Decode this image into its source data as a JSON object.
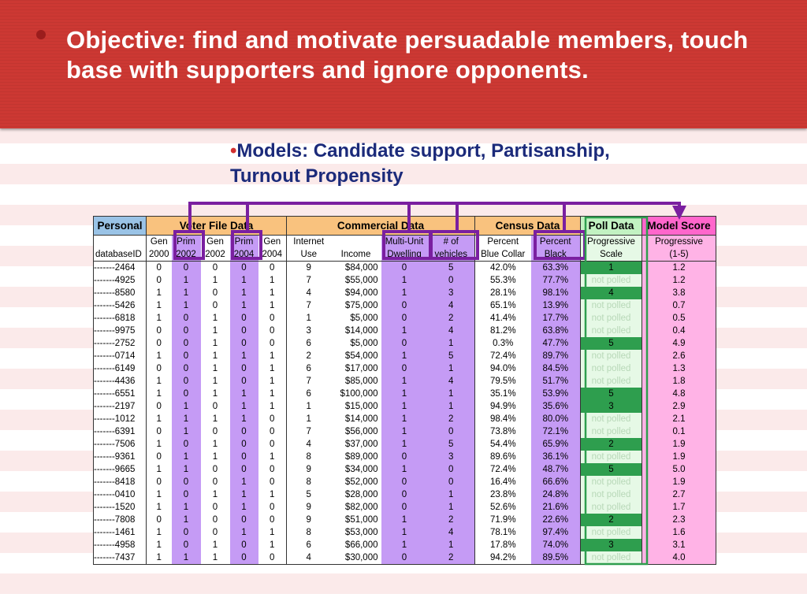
{
  "slide": {
    "objective": "Objective:  find and motivate persuadable members, touch base with supporters and ignore opponents.",
    "models_bullet": "•",
    "models": "Models: Candidate support, Partisanship, Turnout Propensity"
  },
  "colors": {
    "header_red": "#cc3833",
    "subtitle_blue": "#1b2a7a",
    "personal": "#9ac3e6",
    "group_orange": "#f9c27e",
    "highlight_purple": "#c59bf5",
    "box_purple": "#7a1fa0",
    "poll_green": "#c2f2c2",
    "poll_dark_green": "#2e9e4e",
    "model_pink": "#ff66cc"
  },
  "table": {
    "groups": {
      "personal": "Personal",
      "voter": "Voter File Data",
      "commercial": "Commercial Data",
      "census": "Census Data",
      "poll": "Poll Data",
      "model": "Model Score"
    },
    "header_top": {
      "gen2000": "Gen",
      "prim2002": "Prim",
      "gen2002": "Gen",
      "prim2004": "Prim",
      "gen2004": "Gen",
      "internet": "Internet",
      "multiunit": "Multi-Unit",
      "vehicles": "# of",
      "bluecollar": "Percent",
      "black": "Percent",
      "poll": "Progressive",
      "model": "Progressive"
    },
    "header_bottom": {
      "id": "databaseID",
      "gen2000": "2000",
      "prim2002": "2002",
      "gen2002": "2002",
      "prim2004": "2004",
      "gen2004": "2004",
      "internet": "Use",
      "income": "Income",
      "multiunit": "Dwelling",
      "vehicles": "vehicles",
      "bluecollar": "Blue Collar",
      "black": "Black",
      "poll": "Scale",
      "model": "(1-5)"
    },
    "rows": [
      [
        "-------2464",
        "0",
        "0",
        "0",
        "0",
        "0",
        "9",
        "$84,000",
        "0",
        "5",
        "42.0%",
        "63.3%",
        "1",
        "1.2"
      ],
      [
        "-------4925",
        "0",
        "1",
        "1",
        "1",
        "1",
        "7",
        "$55,000",
        "1",
        "0",
        "55.3%",
        "77.7%",
        "not polled",
        "1.2"
      ],
      [
        "-------8580",
        "1",
        "1",
        "0",
        "1",
        "1",
        "4",
        "$94,000",
        "1",
        "3",
        "28.1%",
        "98.1%",
        "4",
        "3.8"
      ],
      [
        "-------5426",
        "1",
        "1",
        "0",
        "1",
        "1",
        "7",
        "$75,000",
        "0",
        "4",
        "65.1%",
        "13.9%",
        "not polled",
        "0.7"
      ],
      [
        "-------6818",
        "1",
        "0",
        "1",
        "0",
        "0",
        "1",
        "$5,000",
        "0",
        "2",
        "41.4%",
        "17.7%",
        "not polled",
        "0.5"
      ],
      [
        "-------9975",
        "0",
        "0",
        "1",
        "0",
        "0",
        "3",
        "$14,000",
        "1",
        "4",
        "81.2%",
        "63.8%",
        "not polled",
        "0.4"
      ],
      [
        "-------2752",
        "0",
        "0",
        "1",
        "0",
        "0",
        "6",
        "$5,000",
        "0",
        "1",
        "0.3%",
        "47.7%",
        "5",
        "4.9"
      ],
      [
        "-------0714",
        "1",
        "0",
        "1",
        "1",
        "1",
        "2",
        "$54,000",
        "1",
        "5",
        "72.4%",
        "89.7%",
        "not polled",
        "2.6"
      ],
      [
        "-------6149",
        "0",
        "0",
        "1",
        "0",
        "1",
        "6",
        "$17,000",
        "0",
        "1",
        "94.0%",
        "84.5%",
        "not polled",
        "1.3"
      ],
      [
        "-------4436",
        "1",
        "0",
        "1",
        "0",
        "1",
        "7",
        "$85,000",
        "1",
        "4",
        "79.5%",
        "51.7%",
        "not polled",
        "1.8"
      ],
      [
        "-------6551",
        "1",
        "0",
        "1",
        "1",
        "1",
        "6",
        "$100,000",
        "1",
        "1",
        "35.1%",
        "53.9%",
        "5",
        "4.8"
      ],
      [
        "-------2197",
        "0",
        "1",
        "0",
        "1",
        "1",
        "1",
        "$15,000",
        "1",
        "1",
        "94.9%",
        "35.6%",
        "3",
        "2.9"
      ],
      [
        "-------1012",
        "1",
        "1",
        "1",
        "1",
        "0",
        "1",
        "$14,000",
        "1",
        "2",
        "98.4%",
        "80.0%",
        "not polled",
        "2.1"
      ],
      [
        "-------6391",
        "0",
        "1",
        "0",
        "0",
        "0",
        "7",
        "$56,000",
        "1",
        "0",
        "73.8%",
        "72.1%",
        "not polled",
        "0.1"
      ],
      [
        "-------7506",
        "1",
        "0",
        "1",
        "0",
        "0",
        "4",
        "$37,000",
        "1",
        "5",
        "54.4%",
        "65.9%",
        "2",
        "1.9"
      ],
      [
        "-------9361",
        "0",
        "1",
        "1",
        "0",
        "1",
        "8",
        "$89,000",
        "0",
        "3",
        "89.6%",
        "36.1%",
        "not polled",
        "1.9"
      ],
      [
        "-------9665",
        "1",
        "1",
        "0",
        "0",
        "0",
        "9",
        "$34,000",
        "1",
        "0",
        "72.4%",
        "48.7%",
        "5",
        "5.0"
      ],
      [
        "-------8418",
        "0",
        "0",
        "0",
        "1",
        "0",
        "8",
        "$52,000",
        "0",
        "0",
        "16.4%",
        "66.6%",
        "not polled",
        "1.9"
      ],
      [
        "-------0410",
        "1",
        "0",
        "1",
        "1",
        "1",
        "5",
        "$28,000",
        "0",
        "1",
        "23.8%",
        "24.8%",
        "not polled",
        "2.7"
      ],
      [
        "-------1520",
        "1",
        "1",
        "0",
        "1",
        "0",
        "9",
        "$82,000",
        "0",
        "1",
        "52.6%",
        "21.6%",
        "not polled",
        "1.7"
      ],
      [
        "-------7808",
        "0",
        "1",
        "0",
        "0",
        "0",
        "9",
        "$51,000",
        "1",
        "2",
        "71.9%",
        "22.6%",
        "2",
        "2.3"
      ],
      [
        "-------1461",
        "1",
        "0",
        "0",
        "1",
        "1",
        "8",
        "$53,000",
        "1",
        "4",
        "78.1%",
        "97.4%",
        "not polled",
        "1.6"
      ],
      [
        "-------4958",
        "1",
        "0",
        "1",
        "0",
        "1",
        "6",
        "$66,000",
        "1",
        "1",
        "17.8%",
        "74.0%",
        "3",
        "3.1"
      ],
      [
        "-------7437",
        "1",
        "1",
        "1",
        "0",
        "0",
        "4",
        "$30,000",
        "0",
        "2",
        "94.2%",
        "89.5%",
        "not polled",
        "4.0"
      ]
    ]
  }
}
